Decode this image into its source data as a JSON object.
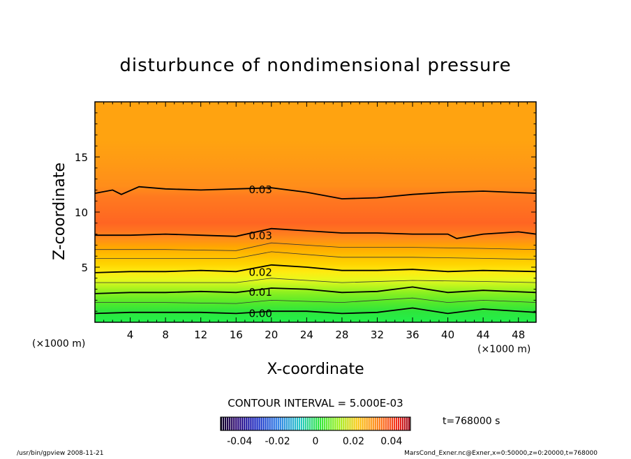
{
  "chart_data": {
    "type": "contour",
    "title": "disturbunce of nondimensional pressure",
    "xlabel": "X-coordinate",
    "ylabel": "Z-coordinate",
    "x_unit": "(×1000 m)",
    "z_unit": "(×1000 m)",
    "xlim": [
      0,
      50
    ],
    "ylim": [
      0,
      20
    ],
    "x_ticks": [
      4,
      8,
      12,
      16,
      20,
      24,
      28,
      32,
      36,
      40,
      44,
      48
    ],
    "y_ticks": [
      5,
      10,
      15
    ],
    "contour_interval": "CONTOUR INTERVAL = 5.000E-03",
    "time_label": "t=768000 s",
    "colorbar_ticks": [
      "-0.04",
      "-0.02",
      "0",
      "0.02",
      "0.04"
    ],
    "colorbar_range": [
      -0.05,
      0.05
    ],
    "contour_labels": [
      {
        "text": "0.03",
        "x": 17.5,
        "z": 12.1
      },
      {
        "text": "0.03",
        "x": 17.5,
        "z": 7.9
      },
      {
        "text": "0.02",
        "x": 17.5,
        "z": 4.6
      },
      {
        "text": "0.01",
        "x": 17.5,
        "z": 2.8
      },
      {
        "text": "0.00",
        "x": 17.5,
        "z": 0.85
      }
    ],
    "contour_lines": [
      {
        "level": 0.03,
        "points": [
          [
            0,
            11.7
          ],
          [
            2,
            12.0
          ],
          [
            3,
            11.6
          ],
          [
            5,
            12.3
          ],
          [
            8,
            12.1
          ],
          [
            12,
            12.0
          ],
          [
            16,
            12.1
          ],
          [
            20,
            12.2
          ],
          [
            24,
            11.8
          ],
          [
            28,
            11.2
          ],
          [
            32,
            11.3
          ],
          [
            36,
            11.6
          ],
          [
            40,
            11.8
          ],
          [
            44,
            11.9
          ],
          [
            50,
            11.7
          ]
        ]
      },
      {
        "level": 0.03,
        "points": [
          [
            0,
            7.9
          ],
          [
            4,
            7.9
          ],
          [
            8,
            8.0
          ],
          [
            12,
            7.9
          ],
          [
            16,
            7.8
          ],
          [
            20,
            8.5
          ],
          [
            24,
            8.3
          ],
          [
            28,
            8.1
          ],
          [
            32,
            8.1
          ],
          [
            36,
            8.0
          ],
          [
            40,
            8.0
          ],
          [
            41,
            7.6
          ],
          [
            44,
            8.0
          ],
          [
            48,
            8.2
          ],
          [
            50,
            8.0
          ]
        ]
      },
      {
        "level": 0.02,
        "points": [
          [
            0,
            4.5
          ],
          [
            4,
            4.6
          ],
          [
            8,
            4.6
          ],
          [
            12,
            4.7
          ],
          [
            16,
            4.6
          ],
          [
            20,
            5.2
          ],
          [
            24,
            5.0
          ],
          [
            28,
            4.7
          ],
          [
            32,
            4.7
          ],
          [
            36,
            4.8
          ],
          [
            40,
            4.6
          ],
          [
            44,
            4.7
          ],
          [
            50,
            4.6
          ]
        ]
      },
      {
        "level": 0.01,
        "points": [
          [
            0,
            2.6
          ],
          [
            4,
            2.7
          ],
          [
            8,
            2.7
          ],
          [
            12,
            2.8
          ],
          [
            16,
            2.7
          ],
          [
            20,
            3.1
          ],
          [
            24,
            3.0
          ],
          [
            28,
            2.7
          ],
          [
            32,
            2.8
          ],
          [
            36,
            3.2
          ],
          [
            40,
            2.7
          ],
          [
            44,
            2.9
          ],
          [
            50,
            2.7
          ]
        ]
      },
      {
        "level": 0.0,
        "points": [
          [
            0,
            0.8
          ],
          [
            4,
            0.9
          ],
          [
            8,
            0.9
          ],
          [
            12,
            0.9
          ],
          [
            16,
            0.8
          ],
          [
            20,
            1.0
          ],
          [
            24,
            1.0
          ],
          [
            28,
            0.8
          ],
          [
            32,
            0.9
          ],
          [
            36,
            1.3
          ],
          [
            40,
            0.8
          ],
          [
            44,
            1.2
          ],
          [
            50,
            0.9
          ]
        ]
      }
    ],
    "thin_lines": [
      [
        [
          0,
          1.8
        ],
        [
          8,
          1.8
        ],
        [
          16,
          1.7
        ],
        [
          20,
          2.0
        ],
        [
          28,
          1.8
        ],
        [
          36,
          2.2
        ],
        [
          40,
          1.8
        ],
        [
          44,
          2.0
        ],
        [
          50,
          1.8
        ]
      ],
      [
        [
          0,
          3.6
        ],
        [
          8,
          3.6
        ],
        [
          16,
          3.6
        ],
        [
          20,
          4.0
        ],
        [
          28,
          3.6
        ],
        [
          36,
          3.8
        ],
        [
          44,
          3.7
        ],
        [
          50,
          3.6
        ]
      ],
      [
        [
          0,
          5.8
        ],
        [
          8,
          5.8
        ],
        [
          16,
          5.8
        ],
        [
          20,
          6.4
        ],
        [
          28,
          5.9
        ],
        [
          36,
          5.9
        ],
        [
          44,
          5.8
        ],
        [
          50,
          5.7
        ]
      ],
      [
        [
          0,
          6.6
        ],
        [
          8,
          6.6
        ],
        [
          16,
          6.5
        ],
        [
          20,
          7.2
        ],
        [
          28,
          6.8
        ],
        [
          36,
          6.8
        ],
        [
          44,
          6.7
        ],
        [
          50,
          6.6
        ]
      ]
    ],
    "color_bands": [
      {
        "z": 0.0,
        "color": "#22f04a"
      },
      {
        "z": 1.0,
        "color": "#2ee53c"
      },
      {
        "z": 1.8,
        "color": "#55ea2a"
      },
      {
        "z": 2.7,
        "color": "#8cf020"
      },
      {
        "z": 3.3,
        "color": "#bdf51e"
      },
      {
        "z": 3.9,
        "color": "#e9f81c"
      },
      {
        "z": 4.6,
        "color": "#ffea10"
      },
      {
        "z": 5.3,
        "color": "#ffd400"
      },
      {
        "z": 6.0,
        "color": "#ffc000"
      },
      {
        "z": 6.8,
        "color": "#ffa800"
      },
      {
        "z": 7.6,
        "color": "#ff8c1a"
      },
      {
        "z": 8.3,
        "color": "#ff7420"
      },
      {
        "z": 9.0,
        "color": "#ff6522"
      },
      {
        "z": 11.4,
        "color": "#ff7a1f"
      },
      {
        "z": 12.3,
        "color": "#ff8d1a"
      },
      {
        "z": 14.5,
        "color": "#ff9a14"
      },
      {
        "z": 16.5,
        "color": "#ffa310"
      },
      {
        "z": 20.0,
        "color": "#ffa310"
      }
    ]
  },
  "footer": {
    "left": "/usr/bin/gpview  2008-11-21",
    "right": "MarsCond_Exner.nc@Exner,x=0:50000,z=0:20000,t=768000"
  }
}
